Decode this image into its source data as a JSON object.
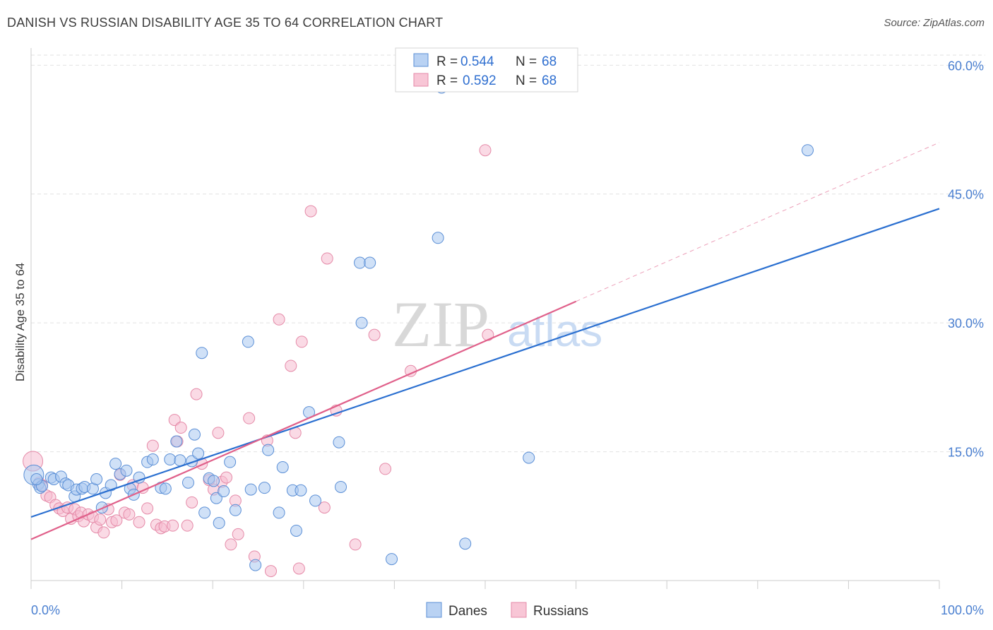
{
  "title": "DANISH VS RUSSIAN DISABILITY AGE 35 TO 64 CORRELATION CHART",
  "source": "Source: ZipAtlas.com",
  "watermark": {
    "zip": "ZIP",
    "atlas": "atlas"
  },
  "colors": {
    "danes": "#5b8fd6",
    "danes_fill": "#a9c8f0",
    "danes_line": "#2a6fd0",
    "russians": "#e58aa8",
    "russians_fill": "#f6bcd0",
    "russians_line": "#e0608a",
    "tick": "#4a7fd0",
    "grid": "#dddddd"
  },
  "legend": {
    "rows": [
      {
        "r_label": "R =",
        "r_value": "0.544",
        "n_label": "N =",
        "n_value": "68"
      },
      {
        "r_label": "R =",
        "r_value": "0.592",
        "n_label": "N =",
        "n_value": "68"
      }
    ]
  },
  "bottom_legend": [
    "Danes",
    "Russians"
  ],
  "chart_data": {
    "type": "scatter",
    "title": "DANISH VS RUSSIAN DISABILITY AGE 35 TO 64 CORRELATION CHART",
    "xlabel": "",
    "ylabel": "Disability Age 35 to 64",
    "xlim": [
      0,
      100
    ],
    "ylim": [
      0,
      62
    ],
    "x_tick_labels": [
      "0.0%",
      "100.0%"
    ],
    "y_ticks": [
      15,
      30,
      45,
      60
    ],
    "y_tick_labels": [
      "15.0%",
      "30.0%",
      "45.0%",
      "60.0%"
    ],
    "grid": true,
    "legend_position": "top-center",
    "series": [
      {
        "name": "Danes",
        "points": [
          [
            0.3,
            12.3
          ],
          [
            0.8,
            11.2
          ],
          [
            1.0,
            10.8
          ],
          [
            1.2,
            11.0
          ],
          [
            2.2,
            12.0
          ],
          [
            2.5,
            11.8
          ],
          [
            3.3,
            12.1
          ],
          [
            3.8,
            11.3
          ],
          [
            4.1,
            11.1
          ],
          [
            4.8,
            9.8
          ],
          [
            5.0,
            10.6
          ],
          [
            5.6,
            10.7
          ],
          [
            5.9,
            10.9
          ],
          [
            6.8,
            10.7
          ],
          [
            7.2,
            11.8
          ],
          [
            7.8,
            8.5
          ],
          [
            8.2,
            10.2
          ],
          [
            8.8,
            11.1
          ],
          [
            9.3,
            13.6
          ],
          [
            9.8,
            12.4
          ],
          [
            10.5,
            12.8
          ],
          [
            10.9,
            10.7
          ],
          [
            11.3,
            10.0
          ],
          [
            11.9,
            12.0
          ],
          [
            12.8,
            13.8
          ],
          [
            13.4,
            14.1
          ],
          [
            14.3,
            10.8
          ],
          [
            14.8,
            10.7
          ],
          [
            15.3,
            14.1
          ],
          [
            16.4,
            14.0
          ],
          [
            16.0,
            16.2
          ],
          [
            17.3,
            11.4
          ],
          [
            17.7,
            13.9
          ],
          [
            18.0,
            17.0
          ],
          [
            18.4,
            14.8
          ],
          [
            18.8,
            26.5
          ],
          [
            19.1,
            7.9
          ],
          [
            19.6,
            11.9
          ],
          [
            20.1,
            11.6
          ],
          [
            20.4,
            9.6
          ],
          [
            20.7,
            6.7
          ],
          [
            21.2,
            10.4
          ],
          [
            21.9,
            13.8
          ],
          [
            22.5,
            8.2
          ],
          [
            23.9,
            27.8
          ],
          [
            24.2,
            10.6
          ],
          [
            24.7,
            1.8
          ],
          [
            25.7,
            10.8
          ],
          [
            26.1,
            15.2
          ],
          [
            27.3,
            7.9
          ],
          [
            27.7,
            13.2
          ],
          [
            28.8,
            10.5
          ],
          [
            29.2,
            5.8
          ],
          [
            29.7,
            10.5
          ],
          [
            30.6,
            19.6
          ],
          [
            31.3,
            9.3
          ],
          [
            33.9,
            16.1
          ],
          [
            34.1,
            10.9
          ],
          [
            36.4,
            30.0
          ],
          [
            36.2,
            37.0
          ],
          [
            37.3,
            37.0
          ],
          [
            39.7,
            2.5
          ],
          [
            44.8,
            39.9
          ],
          [
            45.2,
            57.4
          ],
          [
            47.8,
            4.3
          ],
          [
            54.8,
            14.3
          ],
          [
            85.5,
            50.1
          ],
          [
            0.6,
            11.8
          ]
        ],
        "trend": {
          "x": [
            0,
            100
          ],
          "y": [
            7.4,
            43.3
          ]
        }
      },
      {
        "name": "Russians",
        "points": [
          [
            0.2,
            13.9
          ],
          [
            1.2,
            11.1
          ],
          [
            1.7,
            9.9
          ],
          [
            2.1,
            9.7
          ],
          [
            2.7,
            8.8
          ],
          [
            3.1,
            8.4
          ],
          [
            3.5,
            8.1
          ],
          [
            4.0,
            8.5
          ],
          [
            4.4,
            7.2
          ],
          [
            4.8,
            8.3
          ],
          [
            5.2,
            7.5
          ],
          [
            5.5,
            7.9
          ],
          [
            5.8,
            6.9
          ],
          [
            6.3,
            7.7
          ],
          [
            6.8,
            7.4
          ],
          [
            7.2,
            6.2
          ],
          [
            7.6,
            7.1
          ],
          [
            8.0,
            5.6
          ],
          [
            8.5,
            8.3
          ],
          [
            8.9,
            6.8
          ],
          [
            9.4,
            7.0
          ],
          [
            9.8,
            12.3
          ],
          [
            10.3,
            7.9
          ],
          [
            10.8,
            7.7
          ],
          [
            11.2,
            11.1
          ],
          [
            11.9,
            6.8
          ],
          [
            12.3,
            10.8
          ],
          [
            12.8,
            8.4
          ],
          [
            13.4,
            15.7
          ],
          [
            13.8,
            6.5
          ],
          [
            14.3,
            6.1
          ],
          [
            14.7,
            6.3
          ],
          [
            15.6,
            6.4
          ],
          [
            15.8,
            18.7
          ],
          [
            16.1,
            16.2
          ],
          [
            16.5,
            17.8
          ],
          [
            17.2,
            6.4
          ],
          [
            17.7,
            9.1
          ],
          [
            18.2,
            21.7
          ],
          [
            18.8,
            13.6
          ],
          [
            19.6,
            11.7
          ],
          [
            20.1,
            10.6
          ],
          [
            20.6,
            17.2
          ],
          [
            21.0,
            11.5
          ],
          [
            21.5,
            12.0
          ],
          [
            22.0,
            4.2
          ],
          [
            22.5,
            9.3
          ],
          [
            22.8,
            5.4
          ],
          [
            24.0,
            18.9
          ],
          [
            24.6,
            2.8
          ],
          [
            26.0,
            16.3
          ],
          [
            26.4,
            1.1
          ],
          [
            27.3,
            30.4
          ],
          [
            28.6,
            25.0
          ],
          [
            29.1,
            17.2
          ],
          [
            29.5,
            1.4
          ],
          [
            29.8,
            27.8
          ],
          [
            30.8,
            43.0
          ],
          [
            32.3,
            8.5
          ],
          [
            32.6,
            37.5
          ],
          [
            33.6,
            19.8
          ],
          [
            35.7,
            4.2
          ],
          [
            37.8,
            28.6
          ],
          [
            39.0,
            13.0
          ],
          [
            41.8,
            24.4
          ],
          [
            50.3,
            28.6
          ],
          [
            50.0,
            50.1
          ],
          [
            0.9,
            11.4
          ]
        ],
        "trend": {
          "x": [
            0,
            60
          ],
          "y": [
            4.8,
            32.5
          ]
        },
        "trend_extension": {
          "x": [
            60,
            100
          ],
          "y": [
            32.5,
            51.0
          ]
        }
      }
    ]
  }
}
